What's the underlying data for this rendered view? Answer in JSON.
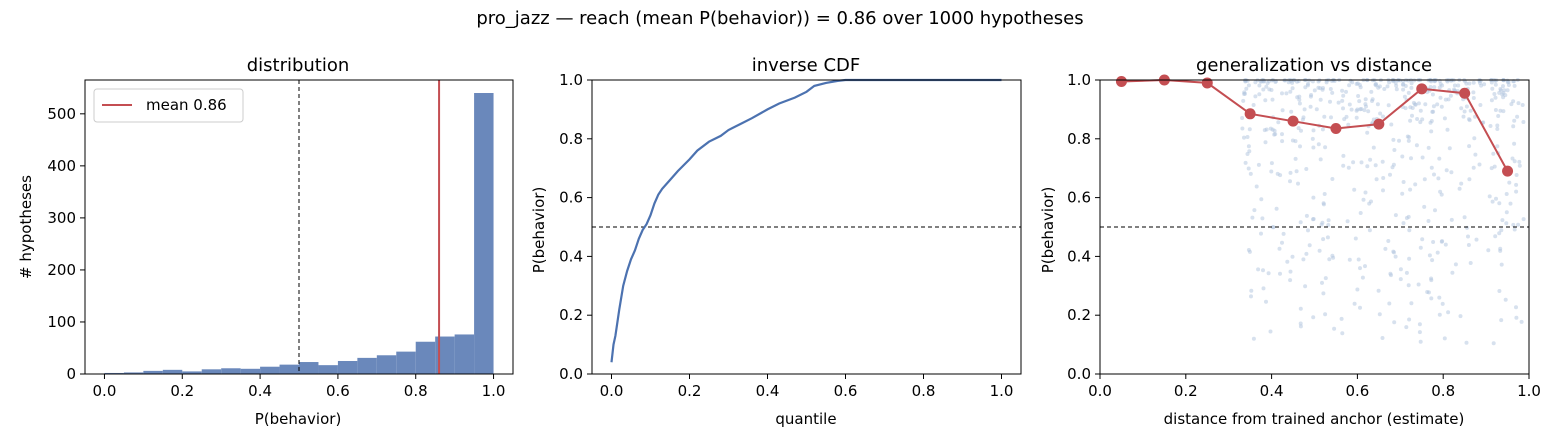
{
  "suptitle": "pro_jazz  —  reach (mean P(behavior)) = 0.86  over 1000 hypotheses",
  "colors": {
    "bar": "#6a88bb",
    "mean": "#c44e52",
    "line": "#4c72b0",
    "scatter": "#b0c4de",
    "ref": "#000000"
  },
  "chart_data": [
    {
      "type": "bar",
      "title": "distribution",
      "xlabel": "P(behavior)",
      "ylabel": "# hypotheses",
      "xlim": [
        -0.05,
        1.05
      ],
      "ylim": [
        0,
        565
      ],
      "xticks": [
        "0.0",
        "0.2",
        "0.4",
        "0.6",
        "0.8",
        "1.0"
      ],
      "yticks": [
        "0",
        "100",
        "200",
        "300",
        "400",
        "500"
      ],
      "bin_width": 0.05,
      "bin_starts": [
        0.0,
        0.05,
        0.1,
        0.15,
        0.2,
        0.25,
        0.3,
        0.35,
        0.4,
        0.45,
        0.5,
        0.55,
        0.6,
        0.65,
        0.7,
        0.75,
        0.8,
        0.85,
        0.9,
        0.95
      ],
      "values": [
        2,
        3,
        6,
        8,
        5,
        9,
        11,
        10,
        14,
        18,
        23,
        17,
        25,
        31,
        36,
        43,
        62,
        72,
        76,
        540
      ],
      "ref_line": 0.5,
      "mean": 0.86,
      "legend": "mean 0.86",
      "legend_position": "upper-left"
    },
    {
      "type": "line",
      "title": "inverse CDF",
      "xlabel": "quantile",
      "ylabel": "P(behavior)",
      "xlim": [
        -0.05,
        1.05
      ],
      "ylim": [
        0,
        1
      ],
      "xticks": [
        "0.0",
        "0.2",
        "0.4",
        "0.6",
        "0.8",
        "1.0"
      ],
      "yticks": [
        "0.0",
        "0.2",
        "0.4",
        "0.6",
        "0.8",
        "1.0"
      ],
      "ref_line": 0.5,
      "x": [
        0.0,
        0.005,
        0.01,
        0.02,
        0.03,
        0.04,
        0.05,
        0.06,
        0.07,
        0.08,
        0.09,
        0.1,
        0.11,
        0.12,
        0.13,
        0.15,
        0.17,
        0.2,
        0.22,
        0.25,
        0.28,
        0.3,
        0.33,
        0.36,
        0.4,
        0.43,
        0.47,
        0.5,
        0.52,
        0.55,
        0.58,
        0.6,
        0.7,
        0.8,
        1.0
      ],
      "y": [
        0.04,
        0.1,
        0.13,
        0.22,
        0.3,
        0.35,
        0.39,
        0.42,
        0.46,
        0.49,
        0.51,
        0.54,
        0.58,
        0.61,
        0.63,
        0.66,
        0.69,
        0.73,
        0.76,
        0.79,
        0.81,
        0.83,
        0.85,
        0.87,
        0.9,
        0.92,
        0.94,
        0.96,
        0.98,
        0.99,
        0.997,
        1.0,
        1.0,
        1.0,
        1.0
      ]
    },
    {
      "type": "scatter",
      "title": "generalization vs distance",
      "xlabel": "distance from trained anchor (estimate)",
      "ylabel": "P(behavior)",
      "xlim": [
        0,
        1
      ],
      "ylim": [
        0,
        1
      ],
      "xticks": [
        "0.0",
        "0.2",
        "0.4",
        "0.6",
        "0.8",
        "1.0"
      ],
      "yticks": [
        "0.0",
        "0.2",
        "0.4",
        "0.6",
        "0.8",
        "1.0"
      ],
      "ref_line": 0.5,
      "line_x": [
        0.05,
        0.15,
        0.25,
        0.35,
        0.45,
        0.55,
        0.65,
        0.75,
        0.85,
        0.95
      ],
      "line_y": [
        0.995,
        1.0,
        0.99,
        0.885,
        0.86,
        0.835,
        0.85,
        0.97,
        0.955,
        0.69
      ],
      "scatter_points": 600
    }
  ]
}
